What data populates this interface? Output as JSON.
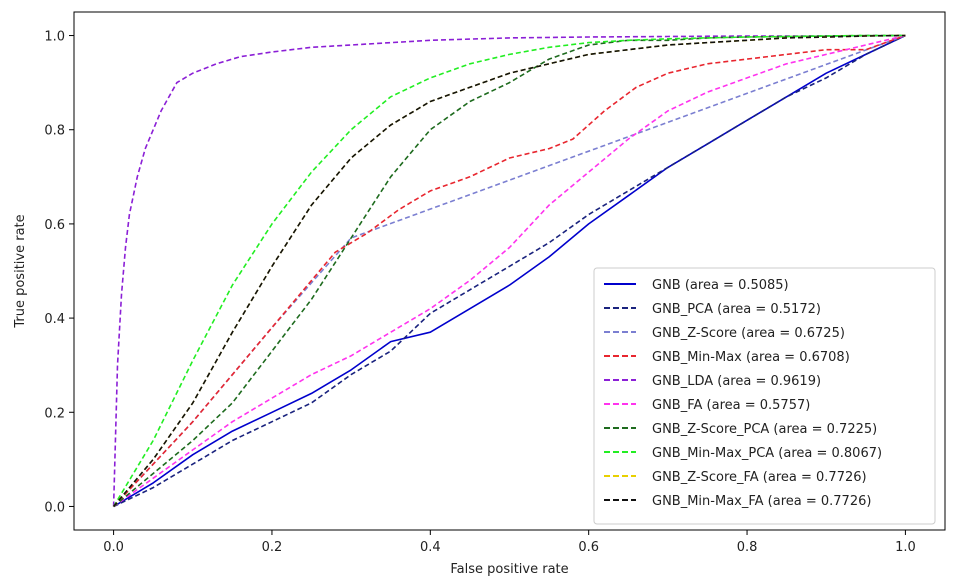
{
  "chart_data": {
    "type": "line",
    "title": "",
    "xlabel": "False positive rate",
    "ylabel": "True positive rate",
    "xlim": [
      -0.05,
      1.05
    ],
    "ylim": [
      -0.05,
      1.05
    ],
    "xticks": [
      "0.0",
      "0.2",
      "0.4",
      "0.6",
      "0.8",
      "1.0"
    ],
    "yticks": [
      "0.0",
      "0.2",
      "0.4",
      "0.6",
      "0.8",
      "1.0"
    ],
    "grid": false,
    "legend_position": "lower-right",
    "series": [
      {
        "name": "GNB (area = 0.5085)",
        "color": "#0000cc",
        "dash": "solid",
        "x": [
          0,
          0.05,
          0.1,
          0.15,
          0.2,
          0.25,
          0.3,
          0.35,
          0.4,
          0.45,
          0.5,
          0.55,
          0.6,
          0.65,
          0.7,
          0.75,
          0.8,
          0.85,
          0.9,
          0.95,
          1.0
        ],
        "y": [
          0,
          0.05,
          0.11,
          0.16,
          0.2,
          0.24,
          0.29,
          0.35,
          0.37,
          0.42,
          0.47,
          0.53,
          0.6,
          0.66,
          0.72,
          0.77,
          0.82,
          0.87,
          0.92,
          0.96,
          1.0
        ]
      },
      {
        "name": "GNB_PCA (area = 0.5172)",
        "color": "#1a237e",
        "dash": "dashed",
        "x": [
          0,
          0.05,
          0.1,
          0.15,
          0.2,
          0.25,
          0.3,
          0.35,
          0.4,
          0.45,
          0.5,
          0.55,
          0.6,
          0.65,
          0.7,
          0.75,
          0.8,
          0.85,
          0.9,
          0.95,
          1.0
        ],
        "y": [
          0,
          0.04,
          0.09,
          0.14,
          0.18,
          0.22,
          0.28,
          0.33,
          0.41,
          0.46,
          0.51,
          0.56,
          0.62,
          0.67,
          0.72,
          0.77,
          0.82,
          0.87,
          0.91,
          0.96,
          1.0
        ]
      },
      {
        "name": "GNB_Z-Score (area = 0.6725)",
        "color": "#7b7fd1",
        "dash": "dashed",
        "x": [
          0,
          0.1,
          0.2,
          0.3,
          1.0
        ],
        "y": [
          0,
          0.18,
          0.38,
          0.57,
          1.0
        ]
      },
      {
        "name": "GNB_Min-Max (area = 0.6708)",
        "color": "#e8262f",
        "dash": "dashed",
        "x": [
          0,
          0.1,
          0.2,
          0.28,
          0.32,
          0.36,
          0.4,
          0.45,
          0.5,
          0.55,
          0.58,
          0.62,
          0.66,
          0.7,
          0.75,
          0.8,
          0.85,
          0.9,
          0.95,
          1.0
        ],
        "y": [
          0,
          0.18,
          0.38,
          0.54,
          0.58,
          0.63,
          0.67,
          0.7,
          0.74,
          0.76,
          0.78,
          0.84,
          0.89,
          0.92,
          0.94,
          0.95,
          0.96,
          0.97,
          0.97,
          1.0
        ]
      },
      {
        "name": "GNB_LDA (area = 0.9619)",
        "color": "#8b1fd6",
        "dash": "dashed",
        "x": [
          0,
          0.005,
          0.01,
          0.015,
          0.02,
          0.03,
          0.04,
          0.06,
          0.08,
          0.1,
          0.13,
          0.16,
          0.2,
          0.25,
          0.3,
          0.4,
          0.5,
          0.6,
          0.7,
          0.8,
          0.9,
          1.0
        ],
        "y": [
          0,
          0.3,
          0.45,
          0.55,
          0.62,
          0.7,
          0.76,
          0.84,
          0.9,
          0.92,
          0.94,
          0.955,
          0.965,
          0.975,
          0.98,
          0.99,
          0.995,
          0.997,
          0.998,
          0.999,
          0.999,
          1.0
        ]
      },
      {
        "name": "GNB_FA (area = 0.5757)",
        "color": "#ff33ee",
        "dash": "dashed",
        "x": [
          0,
          0.05,
          0.1,
          0.15,
          0.2,
          0.25,
          0.3,
          0.35,
          0.4,
          0.45,
          0.5,
          0.55,
          0.6,
          0.65,
          0.7,
          0.75,
          0.8,
          0.85,
          0.9,
          0.95,
          1.0
        ],
        "y": [
          0,
          0.06,
          0.12,
          0.18,
          0.23,
          0.28,
          0.32,
          0.37,
          0.42,
          0.48,
          0.55,
          0.64,
          0.71,
          0.78,
          0.84,
          0.88,
          0.91,
          0.94,
          0.96,
          0.98,
          1.0
        ]
      },
      {
        "name": "GNB_Z-Score_PCA (area = 0.7225)",
        "color": "#1e6b1e",
        "dash": "dashed",
        "x": [
          0,
          0.05,
          0.1,
          0.15,
          0.2,
          0.25,
          0.3,
          0.35,
          0.4,
          0.45,
          0.5,
          0.55,
          0.6,
          0.65,
          0.7,
          0.75,
          0.8,
          0.85,
          0.9,
          0.95,
          1.0
        ],
        "y": [
          0,
          0.07,
          0.14,
          0.22,
          0.33,
          0.44,
          0.57,
          0.7,
          0.8,
          0.86,
          0.9,
          0.95,
          0.98,
          0.99,
          0.99,
          0.995,
          0.997,
          0.998,
          0.999,
          1.0,
          1.0
        ]
      },
      {
        "name": "GNB_Min-Max_PCA (area = 0.8067)",
        "color": "#22ee22",
        "dash": "dashed",
        "x": [
          0,
          0.05,
          0.1,
          0.15,
          0.2,
          0.25,
          0.3,
          0.35,
          0.4,
          0.45,
          0.5,
          0.55,
          0.6,
          0.65,
          0.7,
          0.75,
          0.8,
          0.85,
          0.9,
          0.95,
          1.0
        ],
        "y": [
          0,
          0.14,
          0.31,
          0.47,
          0.6,
          0.71,
          0.8,
          0.87,
          0.91,
          0.94,
          0.96,
          0.975,
          0.985,
          0.99,
          0.993,
          0.995,
          0.997,
          0.998,
          0.999,
          1.0,
          1.0
        ]
      },
      {
        "name": "GNB_Z-Score_FA (area = 0.7726)",
        "color": "#e8d000",
        "dash": "dashed",
        "x": [
          0,
          0.05,
          0.1,
          0.15,
          0.2,
          0.25,
          0.3,
          0.35,
          0.4,
          0.45,
          0.5,
          0.55,
          0.6,
          0.65,
          0.7,
          0.75,
          0.8,
          0.85,
          0.9,
          0.95,
          1.0
        ],
        "y": [
          0,
          0.1,
          0.22,
          0.37,
          0.51,
          0.64,
          0.74,
          0.81,
          0.86,
          0.89,
          0.92,
          0.94,
          0.96,
          0.97,
          0.98,
          0.985,
          0.99,
          0.995,
          0.997,
          0.999,
          1.0
        ]
      },
      {
        "name": "GNB_Min-Max_FA (area = 0.7726)",
        "color": "#111111",
        "dash": "dashed",
        "x": [
          0,
          0.05,
          0.1,
          0.15,
          0.2,
          0.25,
          0.3,
          0.35,
          0.4,
          0.45,
          0.5,
          0.55,
          0.6,
          0.65,
          0.7,
          0.75,
          0.8,
          0.85,
          0.9,
          0.95,
          1.0
        ],
        "y": [
          0,
          0.1,
          0.22,
          0.37,
          0.51,
          0.64,
          0.74,
          0.81,
          0.86,
          0.89,
          0.92,
          0.94,
          0.96,
          0.97,
          0.98,
          0.985,
          0.99,
          0.995,
          0.997,
          0.999,
          1.0
        ]
      }
    ]
  }
}
